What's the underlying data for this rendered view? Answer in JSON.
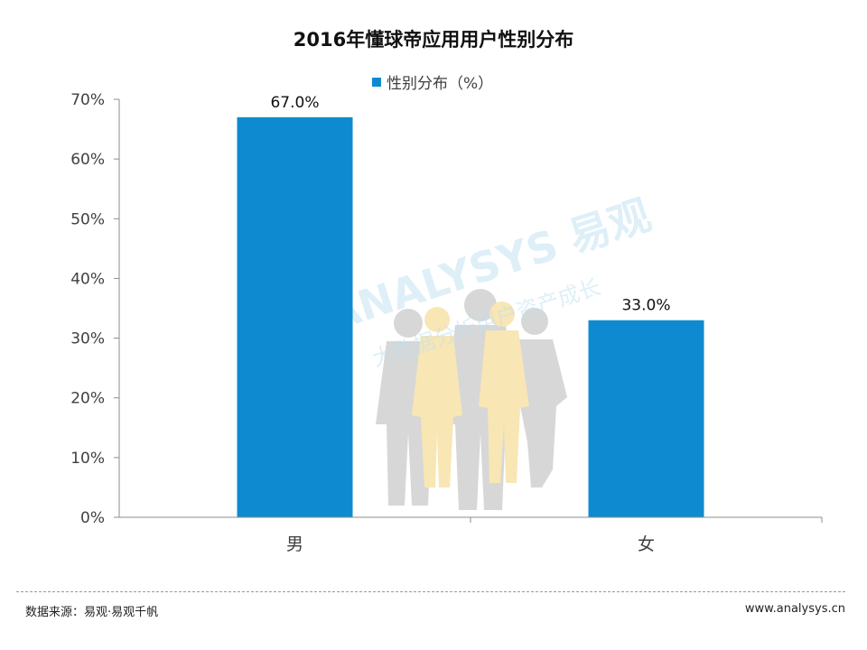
{
  "chart_data": {
    "type": "bar",
    "title": "2016年懂球帝应用用户性别分布",
    "categories": [
      "男",
      "女"
    ],
    "series": [
      {
        "name": "性别分布（%）",
        "values": [
          67.0,
          33.0
        ],
        "color": "#0e8bd0"
      }
    ],
    "data_labels": [
      "67.0%",
      "33.0%"
    ],
    "ylim": [
      0,
      70
    ],
    "yticks": [
      "0%",
      "10%",
      "20%",
      "30%",
      "40%",
      "50%",
      "60%",
      "70%"
    ],
    "xlabel": "",
    "ylabel": "",
    "grid": false,
    "legend_position": "top"
  },
  "footer": {
    "source": "数据来源：易观·易观千帆",
    "website": "www.analysys.cn"
  },
  "watermark": {
    "brand": "ANALYSYS 易观",
    "slogan": "大数据分析用户资产成长"
  }
}
